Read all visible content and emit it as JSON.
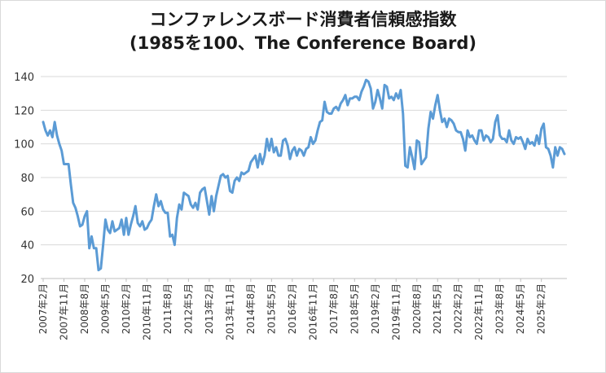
{
  "chart_data": {
    "type": "line",
    "title_line1": "コンファレンスボード消費者信頼感指数",
    "title_line2": "(1985を100、The Conference Board)",
    "xlabel": "",
    "ylabel": "",
    "ylim": [
      20,
      140
    ],
    "yticks": [
      20,
      40,
      60,
      80,
      100,
      120,
      140
    ],
    "grid": true,
    "legend": "none",
    "line_color": "#5b9bd5",
    "grid_color": "#d9d9d9",
    "x_start": "2007-02",
    "x_ticks": [
      {
        "label": "2007年2月",
        "index": 0
      },
      {
        "label": "2007年11月",
        "index": 9
      },
      {
        "label": "2008年8月",
        "index": 18
      },
      {
        "label": "2009年5月",
        "index": 27
      },
      {
        "label": "2010年2月",
        "index": 36
      },
      {
        "label": "2010年11月",
        "index": 45
      },
      {
        "label": "2011年8月",
        "index": 54
      },
      {
        "label": "2012年5月",
        "index": 63
      },
      {
        "label": "2013年2月",
        "index": 72
      },
      {
        "label": "2013年11月",
        "index": 81
      },
      {
        "label": "2014年8月",
        "index": 90
      },
      {
        "label": "2015年5月",
        "index": 99
      },
      {
        "label": "2016年2月",
        "index": 108
      },
      {
        "label": "2016年11月",
        "index": 117
      },
      {
        "label": "2017年8月",
        "index": 126
      },
      {
        "label": "2018年5月",
        "index": 135
      },
      {
        "label": "2019年2月",
        "index": 144
      },
      {
        "label": "2019年11月",
        "index": 153
      },
      {
        "label": "2020年8月",
        "index": 162
      },
      {
        "label": "2021年5月",
        "index": 171
      },
      {
        "label": "2022年2月",
        "index": 180
      },
      {
        "label": "2022年11月",
        "index": 189
      },
      {
        "label": "2023年8月",
        "index": 198
      },
      {
        "label": "2024年5月",
        "index": 207
      },
      {
        "label": "2025年2月",
        "index": 216
      }
    ],
    "series": [
      {
        "name": "消費者信頼感指数",
        "values": [
          113,
          108,
          105,
          108,
          104,
          113,
          105,
          100,
          96,
          88,
          88,
          88,
          76,
          65,
          62,
          57,
          51,
          52,
          57,
          60,
          38,
          45,
          38,
          38,
          25,
          26,
          40,
          55,
          49,
          47,
          54,
          48,
          49,
          50,
          55,
          46,
          56,
          46,
          52,
          57,
          63,
          53,
          51,
          54,
          49,
          50,
          53,
          55,
          63,
          70,
          63,
          66,
          61,
          59,
          59,
          45,
          46,
          40,
          56,
          64,
          61,
          71,
          70,
          69,
          64,
          62,
          65,
          61,
          71,
          73,
          74,
          66,
          58,
          69,
          60,
          69,
          75,
          81,
          82,
          80,
          81,
          72,
          71,
          78,
          80,
          78,
          83,
          82,
          83,
          84,
          89,
          91,
          93,
          86,
          94,
          88,
          93,
          103,
          96,
          103,
          95,
          98,
          93,
          93,
          102,
          103,
          99,
          91,
          96,
          98,
          93,
          97,
          96,
          93,
          97,
          98,
          104,
          100,
          102,
          108,
          113,
          114,
          125,
          119,
          118,
          118,
          121,
          122,
          120,
          124,
          126,
          129,
          123,
          127,
          127,
          128,
          128,
          126,
          131,
          134,
          138,
          137,
          133,
          121,
          125,
          132,
          127,
          121,
          135,
          134,
          127,
          128,
          126,
          130,
          127,
          132,
          118,
          87,
          86,
          98,
          92,
          85,
          102,
          101,
          88,
          90,
          92,
          109,
          119,
          115,
          123,
          129,
          120,
          113,
          115,
          110,
          115,
          114,
          112,
          108,
          107,
          107,
          103,
          96,
          108,
          104,
          105,
          102,
          100,
          108,
          108,
          102,
          105,
          104,
          101,
          103,
          113,
          117,
          105,
          103,
          103,
          101,
          108,
          102,
          100,
          104,
          103,
          104,
          101,
          97,
          103,
          100,
          101,
          99,
          105,
          100,
          109,
          112,
          98,
          97,
          93,
          86,
          98,
          93,
          98,
          97,
          94
        ]
      }
    ]
  }
}
